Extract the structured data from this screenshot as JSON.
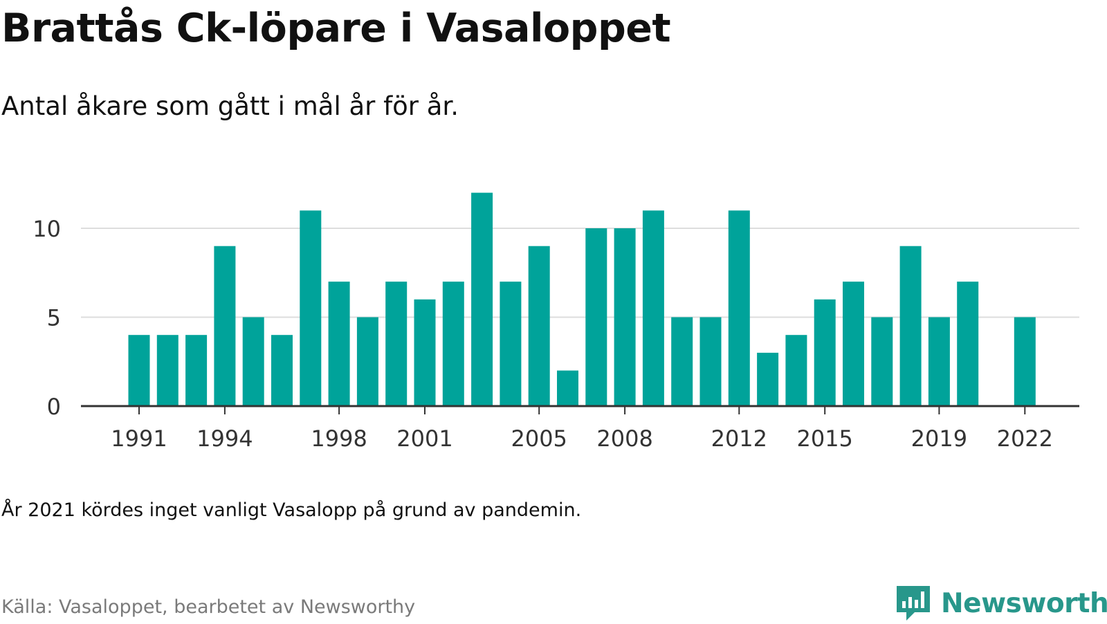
{
  "title": "Brattås Ck-löpare i Vasaloppet",
  "subtitle": "Antal åkare som gått i mål år för år.",
  "note": "År 2021 kördes inget vanligt Vasalopp på grund av pandemin.",
  "source": "Källa: Vasaloppet, bearbetet av Newsworthy",
  "brand": {
    "name": "Newsworthy",
    "icon": "bar-chart-speech-bubble-icon"
  },
  "colors": {
    "bar": "#00a39a",
    "grid": "#dddddd",
    "axis": "#333333",
    "brand": "#28978b"
  },
  "chart_data": {
    "type": "bar",
    "title": "Brattås Ck-löpare i Vasaloppet",
    "subtitle": "Antal åkare som gått i mål år för år.",
    "xlabel": "",
    "ylabel": "",
    "categories": [
      1991,
      1992,
      1993,
      1994,
      1995,
      1996,
      1997,
      1998,
      1999,
      2000,
      2001,
      2002,
      2003,
      2004,
      2005,
      2006,
      2007,
      2008,
      2009,
      2010,
      2011,
      2012,
      2013,
      2014,
      2015,
      2016,
      2017,
      2018,
      2019,
      2020,
      2021,
      2022
    ],
    "values": [
      4,
      4,
      4,
      9,
      5,
      4,
      11,
      7,
      5,
      7,
      6,
      7,
      12,
      7,
      9,
      2,
      10,
      10,
      11,
      5,
      5,
      11,
      3,
      4,
      6,
      7,
      5,
      9,
      5,
      7,
      null,
      5
    ],
    "x_tick_labels": [
      "1991",
      "1994",
      "1998",
      "2001",
      "2005",
      "2008",
      "2012",
      "2015",
      "2019",
      "2022"
    ],
    "y_ticks": [
      0,
      5,
      10
    ],
    "ylim": [
      0,
      12
    ],
    "grid": "horizontal",
    "legend": "none"
  }
}
